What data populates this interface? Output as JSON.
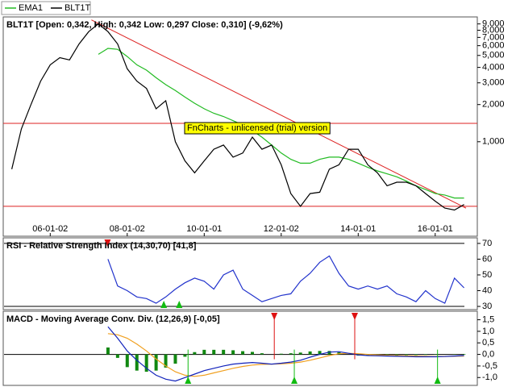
{
  "chart_data": [
    {
      "type": "line",
      "title": "BLT1T [Open: 0,342, High: 0,342  Low: 0,297  Close: 0,310] (-9,62%)",
      "log_scale": true,
      "x": [
        2005,
        2005.25,
        2005.5,
        2005.75,
        2006,
        2006.25,
        2006.5,
        2006.75,
        2007,
        2007.25,
        2007.5,
        2007.75,
        2008,
        2008.25,
        2008.5,
        2008.75,
        2009,
        2009.25,
        2009.5,
        2009.75,
        2010,
        2010.25,
        2010.5,
        2010.75,
        2011,
        2011.25,
        2011.5,
        2011.75,
        2012,
        2012.25,
        2012.5,
        2012.75,
        2013,
        2013.25,
        2013.5,
        2013.75,
        2014,
        2014.25,
        2014.5,
        2014.75,
        2015,
        2015.25,
        2015.5,
        2015.75,
        2016,
        2016.25,
        2016.5,
        2016.75
      ],
      "series": [
        {
          "name": "EMA1",
          "color": "#22bb22",
          "values": [
            null,
            null,
            null,
            null,
            null,
            null,
            null,
            null,
            null,
            5.1,
            5.7,
            5.6,
            4.9,
            4.2,
            3.8,
            3.3,
            2.9,
            2.6,
            2.3,
            2.05,
            1.85,
            1.7,
            1.6,
            1.48,
            1.37,
            1.23,
            1.09,
            0.94,
            0.81,
            0.72,
            0.67,
            0.67,
            0.72,
            0.75,
            0.75,
            0.72,
            0.67,
            0.62,
            0.58,
            0.55,
            0.52,
            0.48,
            0.44,
            0.41,
            0.38,
            0.37,
            0.35,
            0.35
          ]
        },
        {
          "name": "BLT1T",
          "color": "#000000",
          "values": [
            0.6,
            1.27,
            2.0,
            3.1,
            4.2,
            4.8,
            4.6,
            6.2,
            7.8,
            9.0,
            7.8,
            6.2,
            3.9,
            3.1,
            2.7,
            1.85,
            2.15,
            1.0,
            0.7,
            0.56,
            0.7,
            0.87,
            0.94,
            0.75,
            0.81,
            1.09,
            0.87,
            0.94,
            0.65,
            0.38,
            0.3,
            0.38,
            0.39,
            0.6,
            0.65,
            0.87,
            0.87,
            0.65,
            0.56,
            0.44,
            0.47,
            0.47,
            0.44,
            0.38,
            0.33,
            0.29,
            0.28,
            0.31
          ]
        }
      ],
      "xlim": [
        2004.8,
        2016.8
      ],
      "xticks": [
        {
          "value": 2006,
          "label": "06-01-02"
        },
        {
          "value": 2008,
          "label": "08-01-02"
        },
        {
          "value": 2010,
          "label": "10-01-01"
        },
        {
          "value": 2012,
          "label": "12-01-02"
        },
        {
          "value": 2014,
          "label": "14-01-01"
        },
        {
          "value": 2016,
          "label": "16-01-01"
        }
      ],
      "ylim": [
        0.225,
        10.1
      ],
      "yticks": [
        {
          "value": 9,
          "label": "9,000"
        },
        {
          "value": 8,
          "label": "8,000"
        },
        {
          "value": 7,
          "label": "7,000"
        },
        {
          "value": 6,
          "label": "6,000"
        },
        {
          "value": 5,
          "label": "5,000"
        },
        {
          "value": 4,
          "label": "4,000"
        },
        {
          "value": 3,
          "label": "3,000"
        },
        {
          "value": 2,
          "label": "2,000"
        },
        {
          "value": 1,
          "label": "1,000"
        }
      ],
      "hlines": [
        1.41,
        0.3
      ],
      "hline_color": "#dd2222",
      "trendline": {
        "x": [
          2007.07,
          2016.8
        ],
        "values": [
          9.7,
          0.29
        ],
        "color": "#dd2222"
      },
      "annotation": "FnCharts - unlicensed (trial) version"
    },
    {
      "type": "line",
      "title": "RSI - Relative Strength Index (14,30,70) [41,8]",
      "x": [
        2005,
        2005.25,
        2005.5,
        2005.75,
        2006,
        2006.25,
        2006.5,
        2006.75,
        2007,
        2007.25,
        2007.5,
        2007.75,
        2008,
        2008.25,
        2008.5,
        2008.75,
        2009,
        2009.25,
        2009.5,
        2009.75,
        2010,
        2010.25,
        2010.5,
        2010.75,
        2011,
        2011.25,
        2011.5,
        2011.75,
        2012,
        2012.25,
        2012.5,
        2012.75,
        2013,
        2013.25,
        2013.5,
        2013.75,
        2014,
        2014.25,
        2014.5,
        2014.75,
        2015,
        2015.25,
        2015.5,
        2015.75,
        2016,
        2016.25,
        2016.5,
        2016.75
      ],
      "series": [
        {
          "color": "#2233cc",
          "values": [
            null,
            null,
            null,
            null,
            null,
            null,
            null,
            null,
            null,
            null,
            60,
            43,
            40,
            36,
            35,
            32,
            36,
            41,
            45,
            48,
            46,
            41,
            50,
            53,
            41,
            37,
            33,
            35,
            37,
            38,
            46,
            51,
            58,
            62,
            51,
            43,
            41,
            43,
            41,
            43,
            38,
            36,
            33,
            40,
            35,
            32,
            48,
            41.8
          ]
        }
      ],
      "xlim": [
        2004.8,
        2016.8
      ],
      "ylim": [
        29,
        72
      ],
      "yticks": [
        70,
        60,
        50,
        40,
        30
      ],
      "hlines": [
        70,
        30
      ],
      "hline_color": "#000000",
      "sell_signals": [
        2007.49
      ],
      "buy_signals": [
        2008.95,
        2009.35
      ]
    },
    {
      "type": "line",
      "title": "MACD - Moving Average Conv. Div. (12,26,9) [-0,05]",
      "x": [
        2005,
        2005.25,
        2005.5,
        2005.75,
        2006,
        2006.25,
        2006.5,
        2006.75,
        2007,
        2007.25,
        2007.5,
        2007.75,
        2008,
        2008.25,
        2008.5,
        2008.75,
        2009,
        2009.25,
        2009.5,
        2009.75,
        2010,
        2010.25,
        2010.5,
        2010.75,
        2011,
        2011.25,
        2011.5,
        2011.75,
        2012,
        2012.25,
        2012.5,
        2012.75,
        2013,
        2013.25,
        2013.5,
        2013.75,
        2014,
        2014.25,
        2014.5,
        2014.75,
        2015,
        2015.25,
        2015.5,
        2015.75,
        2016,
        2016.25,
        2016.5,
        2016.75
      ],
      "series": [
        {
          "type": "bar",
          "color": "#118811",
          "values": [
            null,
            null,
            null,
            null,
            null,
            null,
            null,
            null,
            null,
            null,
            0.3,
            -0.15,
            -0.55,
            -0.7,
            -0.75,
            -0.7,
            -0.57,
            -0.4,
            -0.1,
            0.1,
            0.2,
            0.2,
            0.2,
            0.18,
            0.14,
            0.11,
            0.05,
            0.0,
            0.03,
            0.05,
            0.08,
            0.13,
            0.15,
            0.15,
            0.09,
            0.0,
            -0.05,
            -0.05,
            -0.04,
            -0.03,
            -0.03,
            -0.03,
            -0.03,
            -0.02,
            -0.01,
            0.0,
            0.01,
            0.02
          ]
        },
        {
          "color": "#f0a020",
          "values": [
            null,
            null,
            null,
            null,
            null,
            null,
            null,
            null,
            null,
            null,
            0.9,
            0.85,
            0.7,
            0.45,
            0.15,
            -0.2,
            -0.5,
            -0.75,
            -0.9,
            -0.95,
            -0.9,
            -0.8,
            -0.7,
            -0.6,
            -0.52,
            -0.46,
            -0.43,
            -0.42,
            -0.41,
            -0.38,
            -0.33,
            -0.25,
            -0.15,
            -0.05,
            0.03,
            0.05,
            0.03,
            0.0,
            -0.02,
            -0.04,
            -0.05,
            -0.06,
            -0.07,
            -0.08,
            -0.09,
            -0.09,
            -0.08,
            -0.07
          ]
        },
        {
          "color": "#1122bb",
          "values": [
            null,
            null,
            null,
            null,
            null,
            null,
            null,
            null,
            null,
            null,
            1.2,
            0.7,
            0.15,
            -0.25,
            -0.6,
            -0.9,
            -1.07,
            -1.15,
            -1.0,
            -0.85,
            -0.7,
            -0.6,
            -0.5,
            -0.42,
            -0.38,
            -0.35,
            -0.38,
            -0.42,
            -0.38,
            -0.33,
            -0.25,
            -0.12,
            0.0,
            0.1,
            0.12,
            0.05,
            -0.02,
            -0.05,
            -0.06,
            -0.07,
            -0.08,
            -0.09,
            -0.1,
            -0.1,
            -0.1,
            -0.09,
            -0.07,
            -0.05
          ]
        }
      ],
      "xlim": [
        2004.8,
        2016.8
      ],
      "ylim": [
        -1.27,
        1.73
      ],
      "yticks": [
        {
          "value": 1.5,
          "label": "1,5"
        },
        {
          "value": 1.0,
          "label": "1,0"
        },
        {
          "value": 0.5,
          "label": "0,5"
        },
        {
          "value": 0.0,
          "label": "0,0"
        },
        {
          "value": -0.5,
          "label": "-0,5"
        },
        {
          "value": -1.0,
          "label": "-1,0"
        }
      ],
      "hlines": [
        0
      ],
      "hline_color": "#000000",
      "sell_signals": [
        2011.82,
        2013.91
      ],
      "buy_signals": [
        2009.58,
        2012.34,
        2016.06
      ]
    }
  ]
}
